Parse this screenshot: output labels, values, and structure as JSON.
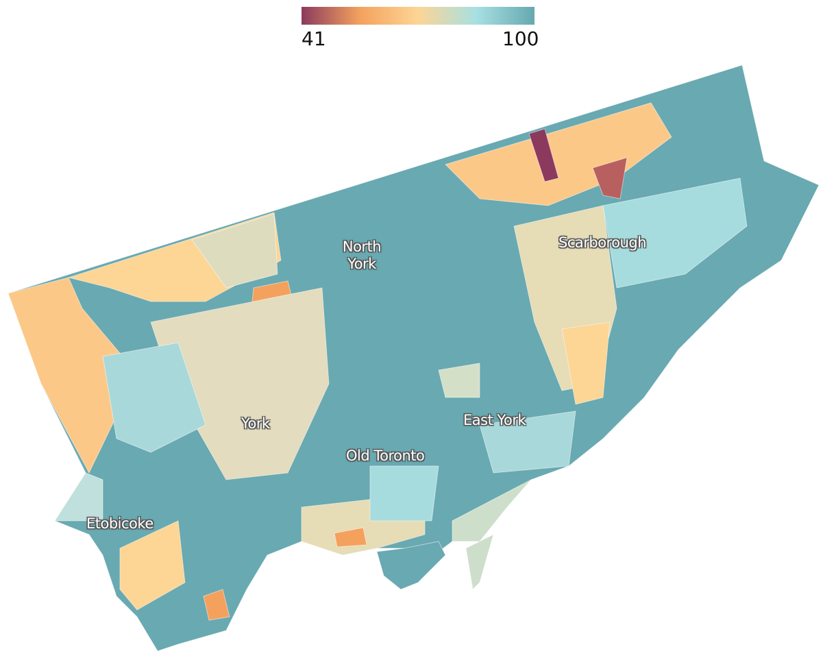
{
  "legend": {
    "min": 41,
    "max": 100,
    "colors": [
      "#8b3a5e",
      "#f4a15e",
      "#fdd595",
      "#a7e0e2",
      "#66a8b0"
    ]
  },
  "labels": [
    {
      "text": "North York"
    },
    {
      "text": "Scarborough"
    },
    {
      "text": "York"
    },
    {
      "text": "East York"
    },
    {
      "text": "Old Toronto"
    },
    {
      "text": "Etobicoke"
    }
  ]
}
